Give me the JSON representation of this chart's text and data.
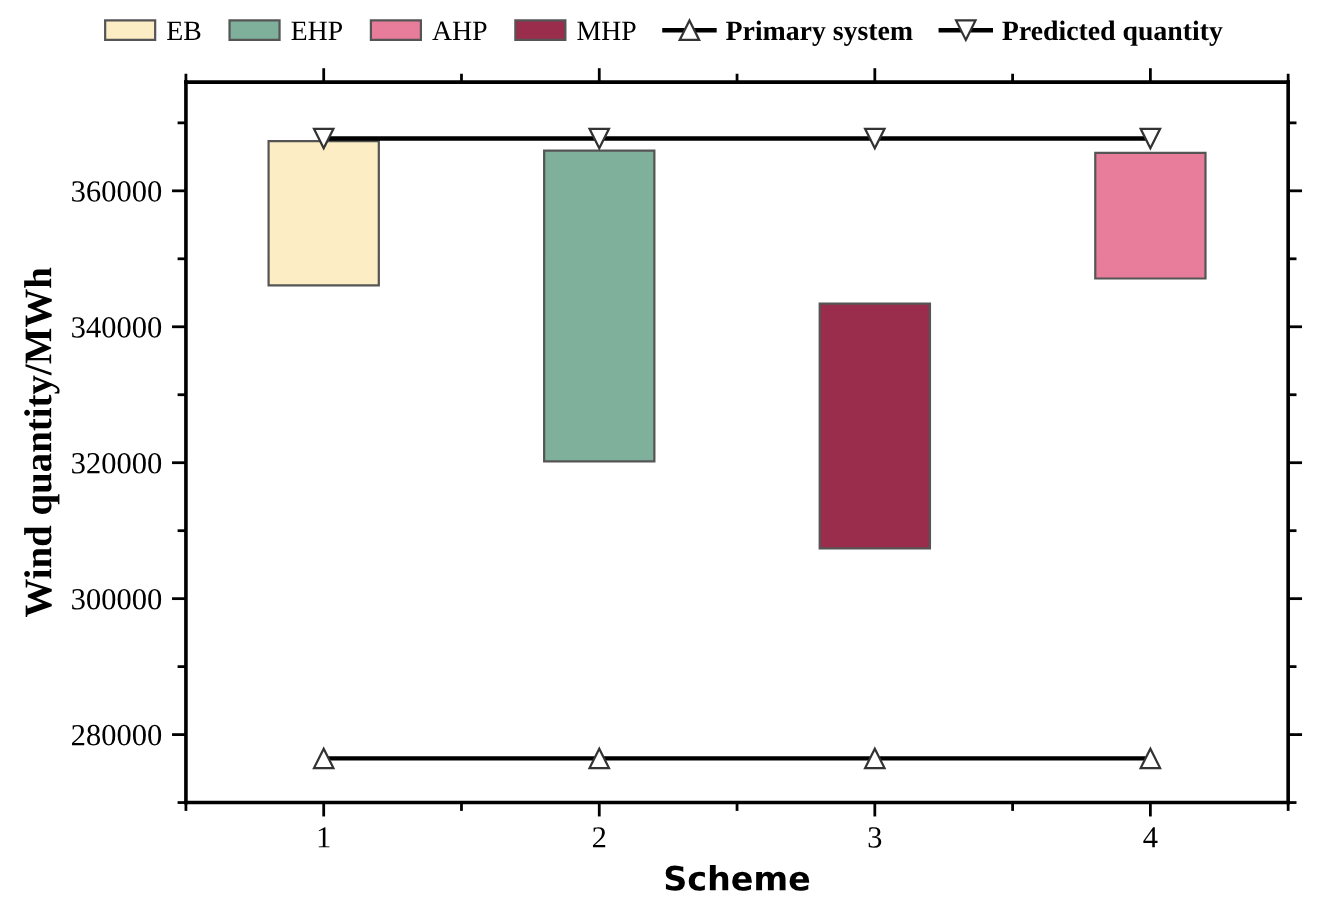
{
  "chart_data": {
    "type": "bar",
    "xlabel": "Scheme",
    "ylabel": "Wind quantity/MWh",
    "x": [
      1,
      2,
      3,
      4
    ],
    "xlim": [
      0.5,
      4.5
    ],
    "xticks": [
      1,
      2,
      3,
      4
    ],
    "ylim": [
      270000,
      376000
    ],
    "yticks": [
      280000,
      300000,
      320000,
      340000,
      360000
    ],
    "grid": false,
    "legend": "top",
    "series": [
      {
        "name": "EB",
        "color": "#fdedc4",
        "values": [
          21200,
          null,
          null,
          null
        ],
        "base": [
          346100,
          null,
          null,
          null
        ]
      },
      {
        "name": "EHP",
        "color": "#7fb09c",
        "values": [
          null,
          45700,
          null,
          null
        ],
        "base": [
          null,
          320200,
          null,
          null
        ]
      },
      {
        "name": "AHP",
        "color": "#e87d9b",
        "values": [
          null,
          null,
          null,
          18500
        ],
        "base": [
          null,
          null,
          null,
          347100
        ]
      },
      {
        "name": "MHP",
        "color": "#9b2d4c",
        "values": [
          null,
          null,
          36000,
          null
        ],
        "base": [
          null,
          null,
          307400,
          null
        ]
      },
      {
        "name": "Primary system",
        "type": "line",
        "color": "#000000",
        "marker": "triangle",
        "line_style": "solid",
        "values": [
          276500,
          276500,
          276500,
          276500
        ]
      },
      {
        "name": "Predicted quantity",
        "type": "line",
        "color": "#000000",
        "marker": "triangle_down",
        "line_style": "solid",
        "values": [
          367700,
          367700,
          367700,
          367700
        ]
      }
    ]
  }
}
